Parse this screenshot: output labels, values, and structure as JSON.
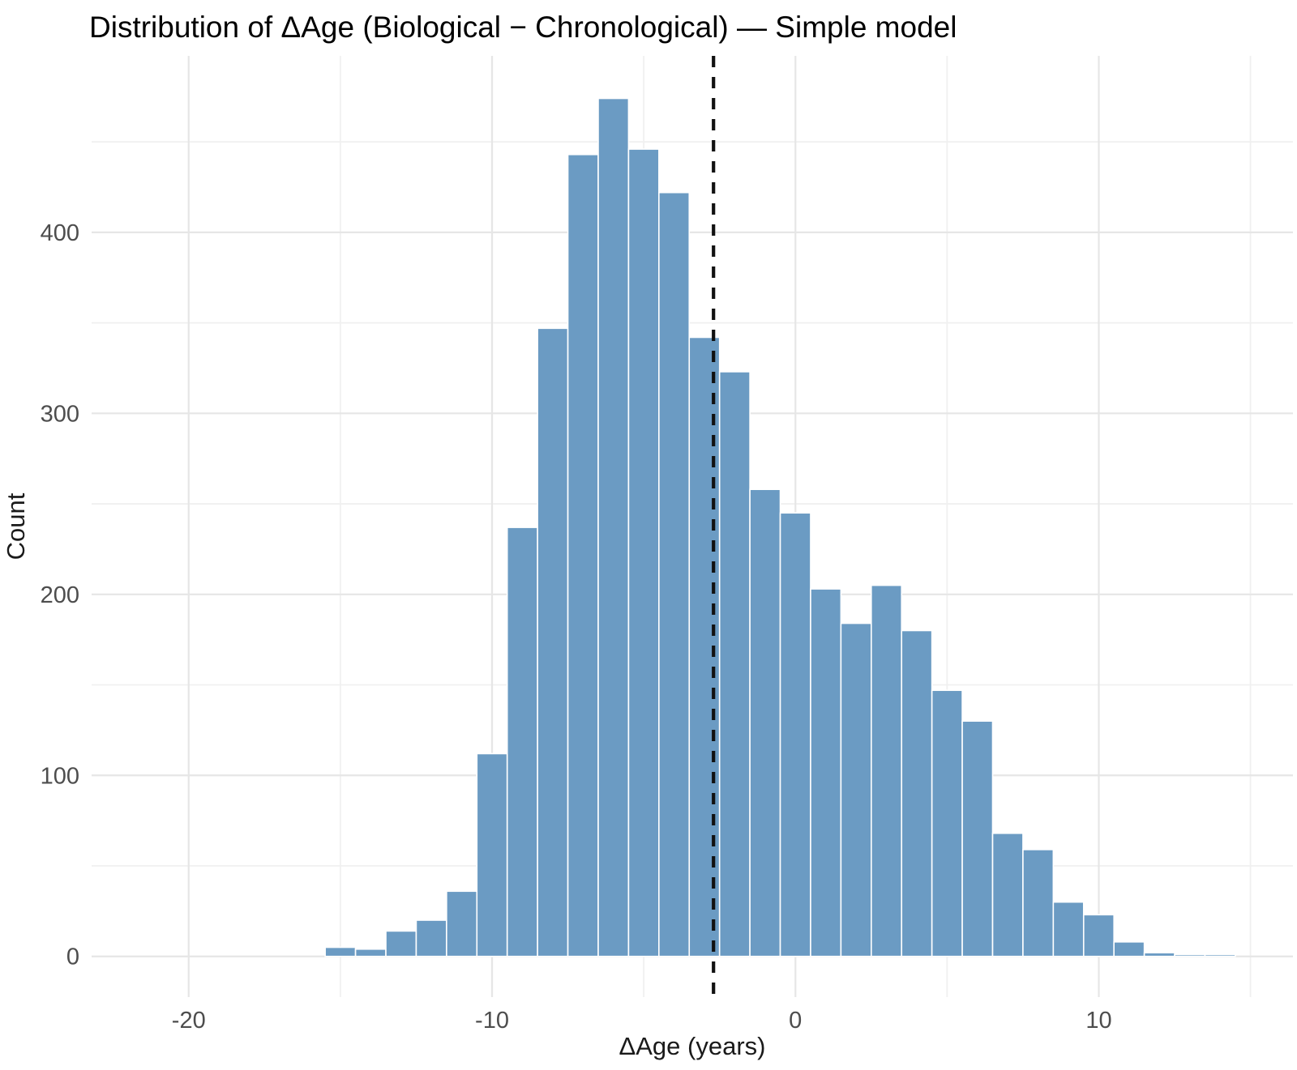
{
  "chart_data": {
    "type": "bar",
    "subtype": "histogram",
    "title": "Distribution of ΔAge (Biological − Chronological) — Simple model",
    "xlabel": "ΔAge (years)",
    "ylabel": "Count",
    "bin_width": 1,
    "bin_centers": [
      -15,
      -14,
      -13,
      -12,
      -11,
      -10,
      -9,
      -8,
      -7,
      -6,
      -5,
      -4,
      -3,
      -2,
      -1,
      0,
      1,
      2,
      3,
      4,
      5,
      6,
      7,
      8,
      9,
      10,
      11,
      12,
      13,
      14
    ],
    "counts": [
      5,
      4,
      14,
      20,
      36,
      112,
      237,
      347,
      443,
      474,
      446,
      422,
      342,
      323,
      258,
      245,
      203,
      184,
      205,
      180,
      147,
      130,
      68,
      59,
      30,
      23,
      8,
      2,
      1,
      1
    ],
    "mean_vline_x": -2.7,
    "vline_style": "dashed",
    "x_major_ticks": [
      -20,
      -10,
      0,
      10
    ],
    "x_minor_ticks": [
      -15,
      -5,
      5,
      15
    ],
    "y_major_ticks": [
      0,
      100,
      200,
      300,
      400
    ],
    "y_minor_ticks": [
      50,
      150,
      250,
      350,
      450
    ],
    "xlim": [
      -23.2,
      16.4
    ],
    "ylim": [
      -22.5,
      497.5
    ],
    "grid": "major+minor",
    "legend": "none",
    "colors": {
      "bar_fill": "#6B9BC3",
      "bar_border": "#FFFFFF",
      "grid_major": "#E6E6E6",
      "grid_minor": "#F0F0F0",
      "vline": "#111111",
      "tick_text": "#4D4D4D",
      "axis_title_text": "#1A1A1A",
      "title_text": "#000000",
      "background": "#FFFFFF"
    }
  }
}
